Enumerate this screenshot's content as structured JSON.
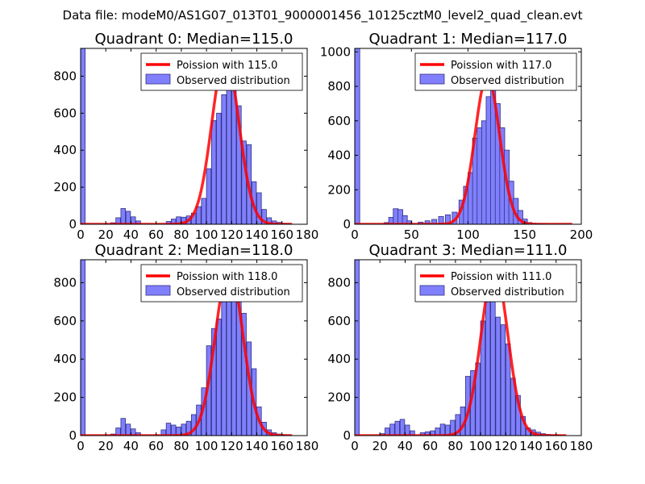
{
  "figure": {
    "suptitle": "Data file: modeM0/AS1G07_013T01_9000001456_10125cztM0_level2_quad_clean.evt"
  },
  "colors": {
    "bar_fill": "#8080ff",
    "bar_edge": "#303080",
    "curve": "#ff0000",
    "axes": "#000000"
  },
  "chart_data": [
    {
      "type": "bar",
      "title": "Quadrant 0: Median=115.0",
      "xlim": [
        0,
        180
      ],
      "ylim": [
        0,
        950
      ],
      "xticks": [
        0,
        20,
        40,
        60,
        80,
        100,
        120,
        140,
        160,
        180
      ],
      "yticks": [
        0,
        200,
        400,
        600,
        800
      ],
      "bin_width": 3.6,
      "bins": [
        [
          0,
          950
        ],
        [
          24,
          8
        ],
        [
          28,
          35
        ],
        [
          32,
          85
        ],
        [
          36,
          70
        ],
        [
          40,
          40
        ],
        [
          44,
          18
        ],
        [
          68,
          15
        ],
        [
          72,
          28
        ],
        [
          76,
          40
        ],
        [
          80,
          38
        ],
        [
          84,
          45
        ],
        [
          88,
          60
        ],
        [
          92,
          95
        ],
        [
          96,
          140
        ],
        [
          100,
          300
        ],
        [
          104,
          560
        ],
        [
          108,
          600
        ],
        [
          112,
          700
        ],
        [
          116,
          790
        ],
        [
          120,
          800
        ],
        [
          124,
          640
        ],
        [
          128,
          450
        ],
        [
          132,
          430
        ],
        [
          136,
          230
        ],
        [
          140,
          170
        ],
        [
          144,
          80
        ],
        [
          148,
          35
        ],
        [
          152,
          18
        ],
        [
          156,
          10
        ],
        [
          160,
          5
        ],
        [
          164,
          2
        ]
      ],
      "model": {
        "label": "Poission with 115.0",
        "lambda": 115.0,
        "peak": 910,
        "range": [
          0,
          168
        ]
      },
      "legend": {
        "model_label": "Poission with 115.0",
        "observed_label": "Observed distribution"
      }
    },
    {
      "type": "bar",
      "title": "Quadrant 1: Median=117.0",
      "xlim": [
        0,
        200
      ],
      "ylim": [
        0,
        1020
      ],
      "xticks": [
        0,
        50,
        100,
        150,
        200
      ],
      "yticks": [
        0,
        200,
        400,
        600,
        800,
        1000
      ],
      "bin_width": 4.4,
      "bins": [
        [
          0,
          1020
        ],
        [
          26,
          10
        ],
        [
          30,
          40
        ],
        [
          34,
          90
        ],
        [
          38,
          85
        ],
        [
          42,
          50
        ],
        [
          46,
          20
        ],
        [
          56,
          12
        ],
        [
          62,
          20
        ],
        [
          68,
          28
        ],
        [
          74,
          45
        ],
        [
          80,
          55
        ],
        [
          86,
          70
        ],
        [
          92,
          140
        ],
        [
          96,
          220
        ],
        [
          100,
          300
        ],
        [
          104,
          500
        ],
        [
          108,
          560
        ],
        [
          112,
          600
        ],
        [
          116,
          740
        ],
        [
          120,
          800
        ],
        [
          124,
          700
        ],
        [
          128,
          560
        ],
        [
          132,
          430
        ],
        [
          136,
          250
        ],
        [
          140,
          150
        ],
        [
          144,
          80
        ],
        [
          148,
          30
        ],
        [
          152,
          10
        ],
        [
          156,
          5
        ],
        [
          160,
          3
        ],
        [
          164,
          2
        ]
      ],
      "model": {
        "label": "Poission with 117.0",
        "lambda": 117.0,
        "peak": 860,
        "range": [
          0,
          192
        ]
      },
      "legend": {
        "model_label": "Poission with 117.0",
        "observed_label": "Observed distribution"
      }
    },
    {
      "type": "bar",
      "title": "Quadrant 2: Median=118.0",
      "xlim": [
        0,
        180
      ],
      "ylim": [
        0,
        920
      ],
      "xticks": [
        0,
        20,
        40,
        60,
        80,
        100,
        120,
        140,
        160,
        180
      ],
      "yticks": [
        0,
        200,
        400,
        600,
        800
      ],
      "bin_width": 3.6,
      "bins": [
        [
          0,
          920
        ],
        [
          24,
          8
        ],
        [
          28,
          40
        ],
        [
          32,
          90
        ],
        [
          36,
          60
        ],
        [
          40,
          35
        ],
        [
          44,
          15
        ],
        [
          64,
          30
        ],
        [
          68,
          65
        ],
        [
          72,
          55
        ],
        [
          76,
          45
        ],
        [
          80,
          60
        ],
        [
          84,
          75
        ],
        [
          88,
          110
        ],
        [
          92,
          160
        ],
        [
          96,
          250
        ],
        [
          100,
          470
        ],
        [
          104,
          560
        ],
        [
          108,
          610
        ],
        [
          112,
          700
        ],
        [
          116,
          780
        ],
        [
          120,
          830
        ],
        [
          124,
          720
        ],
        [
          128,
          640
        ],
        [
          132,
          490
        ],
        [
          136,
          350
        ],
        [
          140,
          150
        ],
        [
          144,
          70
        ],
        [
          148,
          30
        ],
        [
          152,
          15
        ],
        [
          156,
          8
        ],
        [
          160,
          4
        ],
        [
          164,
          2
        ]
      ],
      "model": {
        "label": "Poission with 118.0",
        "lambda": 118.0,
        "peak": 880,
        "range": [
          0,
          168
        ]
      },
      "legend": {
        "model_label": "Poission with 118.0",
        "observed_label": "Observed distribution"
      }
    },
    {
      "type": "bar",
      "title": "Quadrant 3: Median=111.0",
      "xlim": [
        0,
        180
      ],
      "ylim": [
        0,
        920
      ],
      "xticks": [
        0,
        20,
        40,
        60,
        80,
        100,
        120,
        140,
        160,
        180
      ],
      "yticks": [
        0,
        200,
        400,
        600,
        800
      ],
      "bin_width": 3.6,
      "bins": [
        [
          0,
          920
        ],
        [
          20,
          10
        ],
        [
          24,
          40
        ],
        [
          28,
          60
        ],
        [
          32,
          75
        ],
        [
          36,
          85
        ],
        [
          40,
          55
        ],
        [
          44,
          25
        ],
        [
          52,
          15
        ],
        [
          56,
          20
        ],
        [
          60,
          25
        ],
        [
          64,
          40
        ],
        [
          68,
          60
        ],
        [
          72,
          55
        ],
        [
          76,
          80
        ],
        [
          80,
          110
        ],
        [
          84,
          150
        ],
        [
          88,
          310
        ],
        [
          92,
          340
        ],
        [
          96,
          380
        ],
        [
          100,
          600
        ],
        [
          104,
          700
        ],
        [
          108,
          780
        ],
        [
          112,
          620
        ],
        [
          116,
          580
        ],
        [
          120,
          480
        ],
        [
          124,
          300
        ],
        [
          128,
          210
        ],
        [
          132,
          100
        ],
        [
          136,
          40
        ],
        [
          140,
          30
        ],
        [
          144,
          18
        ],
        [
          148,
          10
        ],
        [
          152,
          6
        ],
        [
          156,
          4
        ],
        [
          160,
          2
        ]
      ],
      "model": {
        "label": "Poission with 111.0",
        "lambda": 111.0,
        "peak": 880,
        "range": [
          0,
          168
        ]
      },
      "legend": {
        "model_label": "Poission with 111.0",
        "observed_label": "Observed distribution"
      }
    }
  ]
}
